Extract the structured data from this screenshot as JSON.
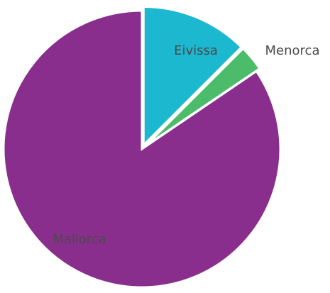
{
  "chart_data": {
    "type": "pie",
    "title": "",
    "slices": [
      {
        "label": "Eivissa",
        "value": 12.5,
        "color": "#1BB8CF"
      },
      {
        "label": "Menorca",
        "value": 3.0,
        "color": "#4CBB6A"
      },
      {
        "label": "Mallorca",
        "value": 84.5,
        "color": "#8A2E8E"
      }
    ],
    "start_angle_deg": 0,
    "direction": "clockwise",
    "exploded_slices": [
      "Eivissa",
      "Menorca"
    ],
    "legend": "none",
    "labels": "on-slice / adjacent"
  }
}
